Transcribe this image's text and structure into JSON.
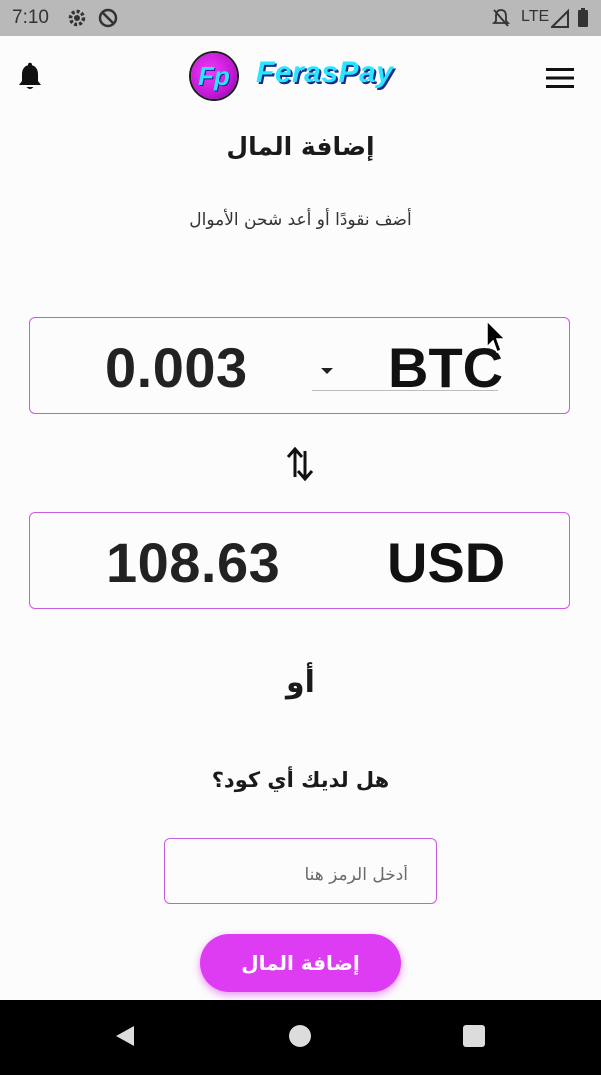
{
  "status_bar": {
    "time": "7:10",
    "network": "LTE",
    "icons": [
      "settings-icon",
      "circle-slash-icon",
      "notifications-off-icon",
      "signal-icon",
      "battery-icon"
    ]
  },
  "app_bar": {
    "logo_mark": "Fp",
    "brand_name": "FerasPay",
    "left_icon": "bell-icon",
    "right_icon": "hamburger-menu-icon"
  },
  "page": {
    "title": "إضافة المال",
    "subtitle": "أضف نقودًا أو أعد شحن الأموال"
  },
  "converter": {
    "crypto_amount": "0.003",
    "crypto_currency": "BTC",
    "swap_icon": "swap-vertical-icon",
    "fiat_amount": "108.63",
    "fiat_currency": "USD"
  },
  "alt": {
    "or_text": "أو",
    "question": "هل لديك أي كود؟",
    "code_placeholder": "أدخل الرمز هنا"
  },
  "actions": {
    "add_money_label": "إضافة المال"
  },
  "colors": {
    "accent": "#de3cf2",
    "border": "#c95be0",
    "brand_text": "#28e6ff",
    "status_bar": "#b9b9b9",
    "nav_bar": "#000000"
  }
}
